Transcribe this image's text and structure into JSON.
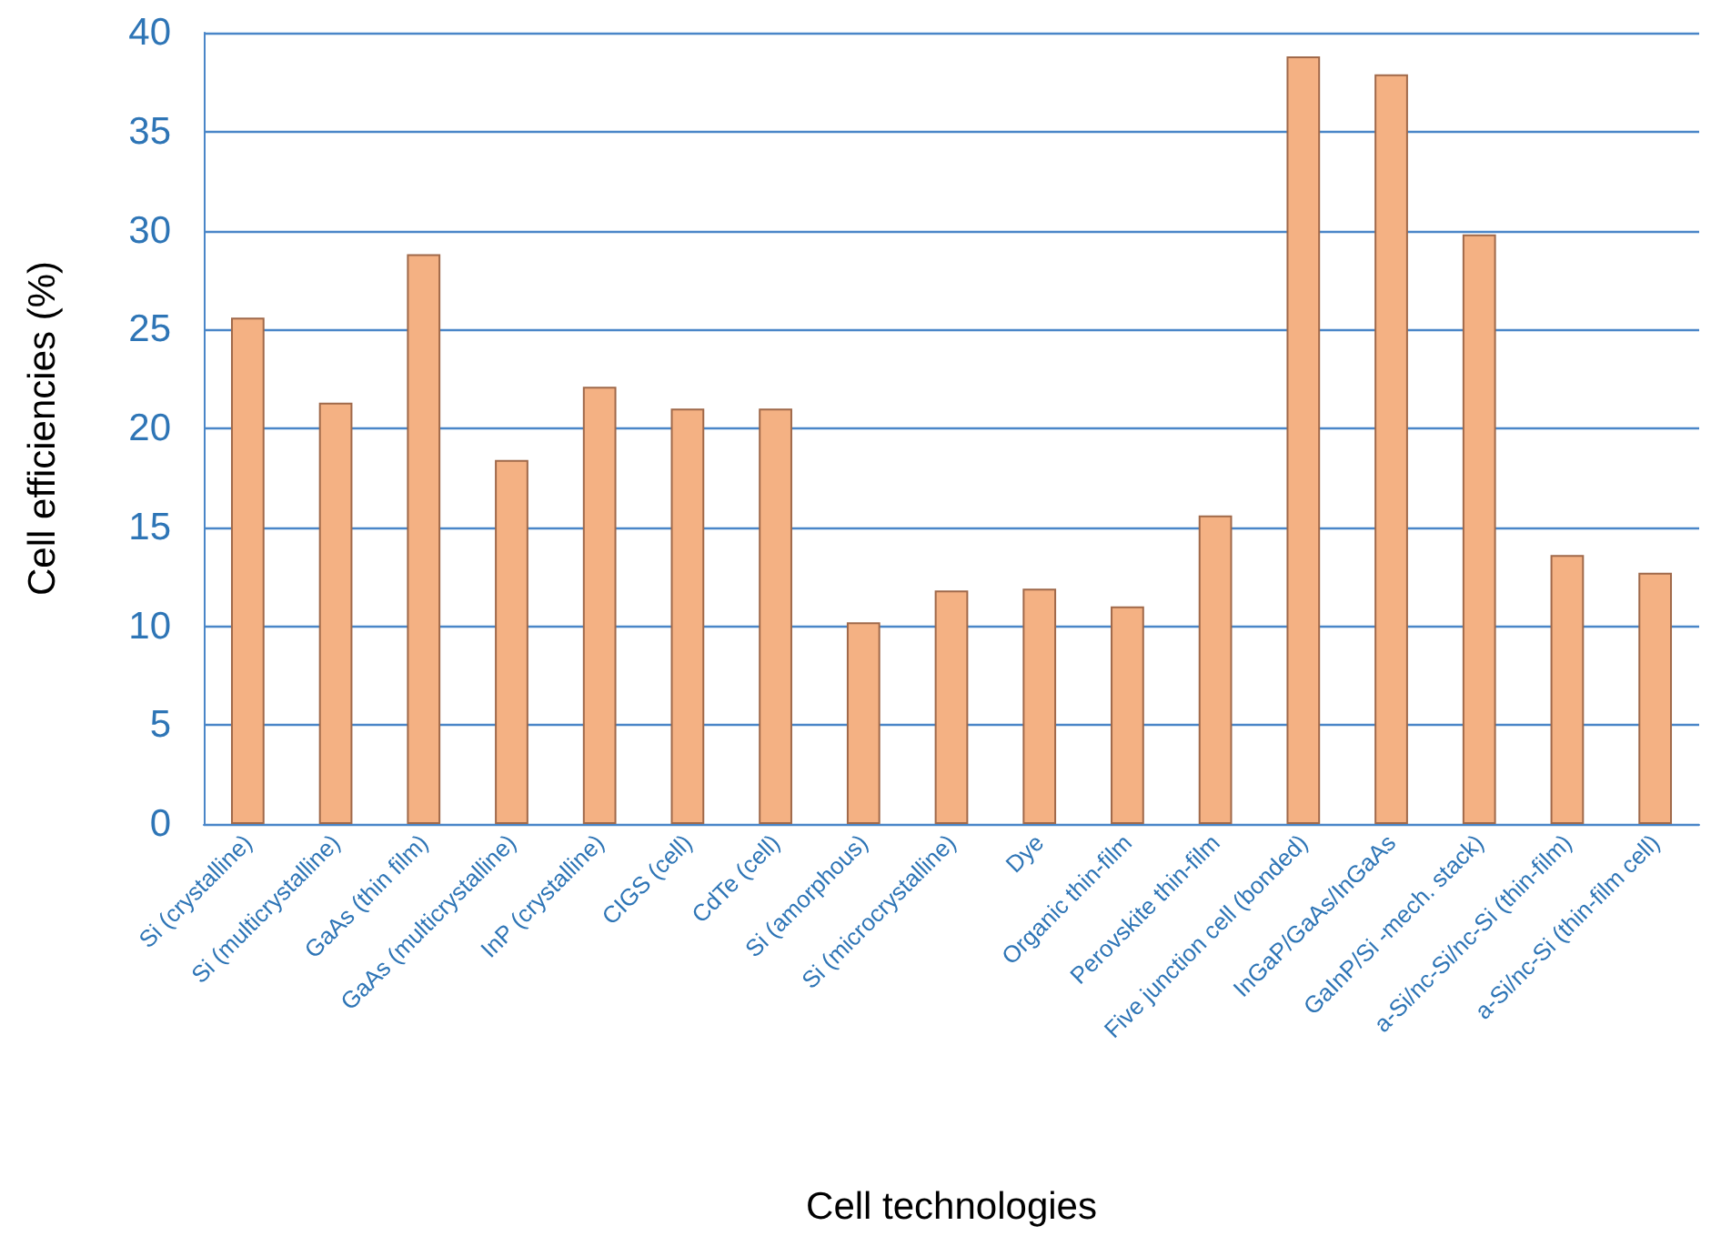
{
  "chart_data": {
    "type": "bar",
    "xlabel": "Cell technologies",
    "ylabel": "Cell efficiencies (%)",
    "categories": [
      "Si (crystalline)",
      "Si (multicrystalline)",
      "GaAs (thin film)",
      "GaAs (multicrystalline)",
      "InP (crystalline)",
      "CIGS (cell)",
      "CdTe (cell)",
      "Si (amorphous)",
      "Si (microcrystalline)",
      "Dye",
      "Organic thin-film",
      "Perovskite thin-film",
      "Five junction cell (bonded)",
      "InGaP/GaAs/InGaAs",
      "GaInP/Si -mech. stack)",
      "a-Si/nc-Si/nc-Si (thin-film)",
      "a-Si/nc-Si (thin-film cell)"
    ],
    "values": [
      25.6,
      21.3,
      28.8,
      18.4,
      22.1,
      21.0,
      21.0,
      10.2,
      11.8,
      11.9,
      11.0,
      15.6,
      38.8,
      37.9,
      29.8,
      13.6,
      12.7
    ],
    "color": "#f4b183",
    "ylim": [
      0,
      40
    ],
    "yticks": [
      0,
      5,
      10,
      15,
      20,
      25,
      30,
      35,
      40
    ],
    "grid": "y"
  }
}
